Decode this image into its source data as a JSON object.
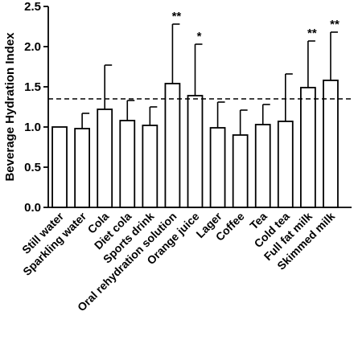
{
  "chart_data": {
    "type": "bar",
    "title": "",
    "xlabel": "",
    "ylabel": "Beverage Hydration Index",
    "ylim": [
      0,
      2.5
    ],
    "yticks": [
      "0.0",
      "0.5",
      "1.0",
      "1.5",
      "2.0",
      "2.5"
    ],
    "ytick_values": [
      0,
      0.5,
      1.0,
      1.5,
      2.0,
      2.5
    ],
    "reference_line": 1.35,
    "grid": false,
    "categories": [
      "Still water",
      "Sparkling water",
      "Cola",
      "Diet cola",
      "Sports drink",
      "Oral rehydration solution",
      "Orange juice",
      "Lager",
      "Coffee",
      "Tea",
      "Cold tea",
      "Full fat milk",
      "Skimmed milk"
    ],
    "values": [
      1.0,
      0.98,
      1.22,
      1.08,
      1.02,
      1.54,
      1.39,
      0.99,
      0.9,
      1.03,
      1.07,
      1.49,
      1.58
    ],
    "error_upper": [
      1.0,
      1.17,
      1.77,
      1.33,
      1.25,
      2.28,
      2.03,
      1.31,
      1.21,
      1.28,
      1.66,
      2.07,
      2.18
    ],
    "significance": [
      "",
      "",
      "",
      "",
      "",
      "**",
      "*",
      "",
      "",
      "",
      "",
      "**",
      "**"
    ],
    "bar_fill": "#ffffff",
    "bar_stroke": "#000000"
  }
}
